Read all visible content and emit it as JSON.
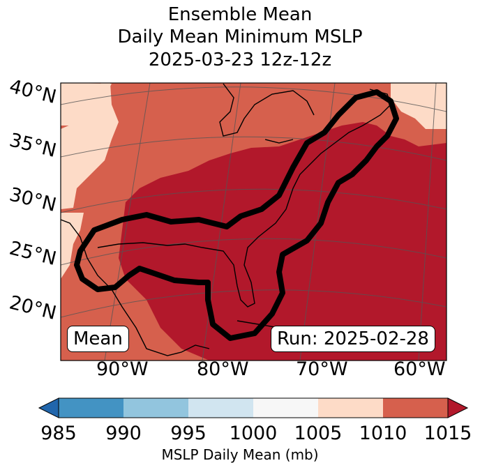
{
  "title": {
    "line1": "Ensemble Mean",
    "line2": "Daily Mean Minimum MSLP",
    "line3": "2025-03-23 12z-12z"
  },
  "map": {
    "lat_labels": [
      "40°N",
      "35°N",
      "30°N",
      "25°N",
      "20°N"
    ],
    "lon_labels": [
      "90°W",
      "80°W",
      "70°W",
      "60°W"
    ],
    "mean_box": "Mean",
    "run_box": "Run: 2025-02-28",
    "colors": {
      "dark_red": "#b2182b",
      "red": "#d6604d",
      "peach": "#fddbc7",
      "ocean": "#b2182b"
    }
  },
  "colorbar": {
    "ticks": [
      "985",
      "990",
      "995",
      "1000",
      "1005",
      "1010",
      "1015"
    ],
    "label": "MSLP Daily Mean (mb)",
    "colors": [
      "#2166ac",
      "#4393c3",
      "#92c5de",
      "#d1e5f0",
      "#f7f7f7",
      "#fddbc7",
      "#d6604d",
      "#b2182b"
    ]
  }
}
